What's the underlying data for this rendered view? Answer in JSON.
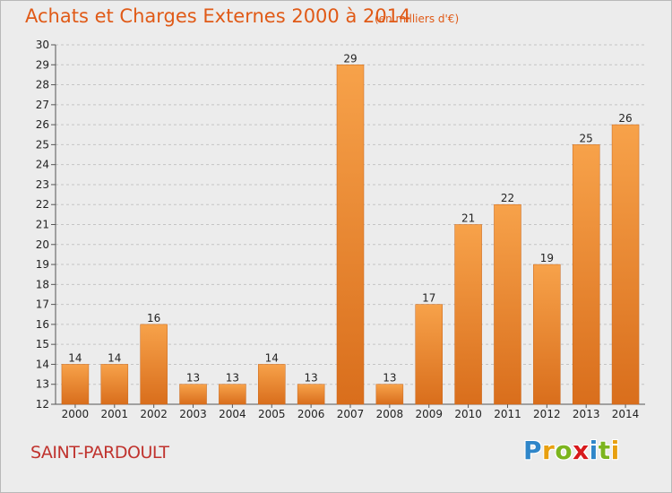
{
  "chart_data": {
    "type": "bar",
    "title": "Achats et Charges Externes 2000 à 2014",
    "subtitle": "(en milliers d'€)",
    "categories": [
      "2000",
      "2001",
      "2002",
      "2003",
      "2004",
      "2005",
      "2006",
      "2007",
      "2008",
      "2009",
      "2010",
      "2011",
      "2012",
      "2013",
      "2014"
    ],
    "values": [
      14,
      14,
      16,
      13,
      13,
      14,
      13,
      29,
      13,
      17,
      21,
      22,
      19,
      25,
      26
    ],
    "ylim": [
      12,
      30
    ],
    "ytick_step": 1,
    "xlabel": "",
    "ylabel": "",
    "grid": true,
    "data_labels": true,
    "bar_color": "#f19a42",
    "bar_color_dark": "#d9701f"
  },
  "place_name": "SAINT-PARDOULT",
  "logo": {
    "letters": [
      "P",
      "r",
      "o",
      "x",
      "i",
      "t",
      "i"
    ],
    "colors": [
      "#2f86c9",
      "#e8a010",
      "#7cb51e",
      "#d7191c",
      "#2f86c9",
      "#7cb51e",
      "#e8a010"
    ]
  }
}
